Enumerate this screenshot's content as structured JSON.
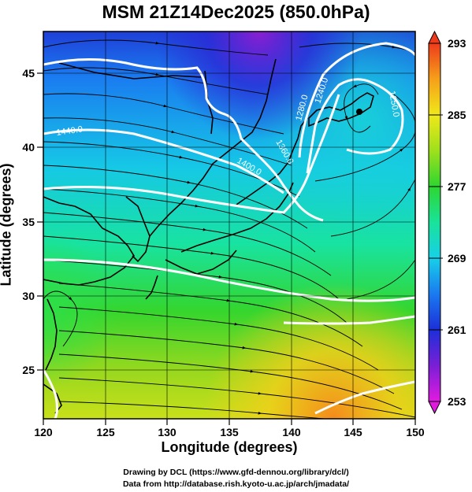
{
  "title": "MSM 21Z14Dec2025 (850.0hPa)",
  "x_axis": {
    "label": "Longitude (degrees)",
    "range": [
      120,
      150
    ],
    "ticks": [
      "120",
      "125",
      "130",
      "135",
      "140",
      "145",
      "150"
    ]
  },
  "y_axis": {
    "label": "Latitude  (degrees)",
    "range": [
      22.5,
      47.5
    ],
    "ticks": [
      "25",
      "30",
      "35",
      "40",
      "45"
    ]
  },
  "colorbar": {
    "range": [
      253,
      293
    ],
    "ticks": [
      "253",
      "261",
      "269",
      "277",
      "285",
      "293"
    ],
    "colors": [
      "#e21ae0",
      "#7a1fd6",
      "#1c2fd8",
      "#1a7af0",
      "#17d0e8",
      "#19e39a",
      "#2ed630",
      "#9ee01c",
      "#f0e81a",
      "#f6a019",
      "#ee3b1c"
    ]
  },
  "contours": {
    "color": "#ffffff",
    "labels": [
      "1440.0",
      "1400.0",
      "1360.0",
      "1280.0",
      "1240.0",
      "1250.0"
    ]
  },
  "credits": {
    "line1": "Drawing by DCL (https://www.gfd-dennou.org/library/dcl/)",
    "line2": "Data from http://database.rish.kyoto-u.ac.jp/arch/jmadata/"
  }
}
